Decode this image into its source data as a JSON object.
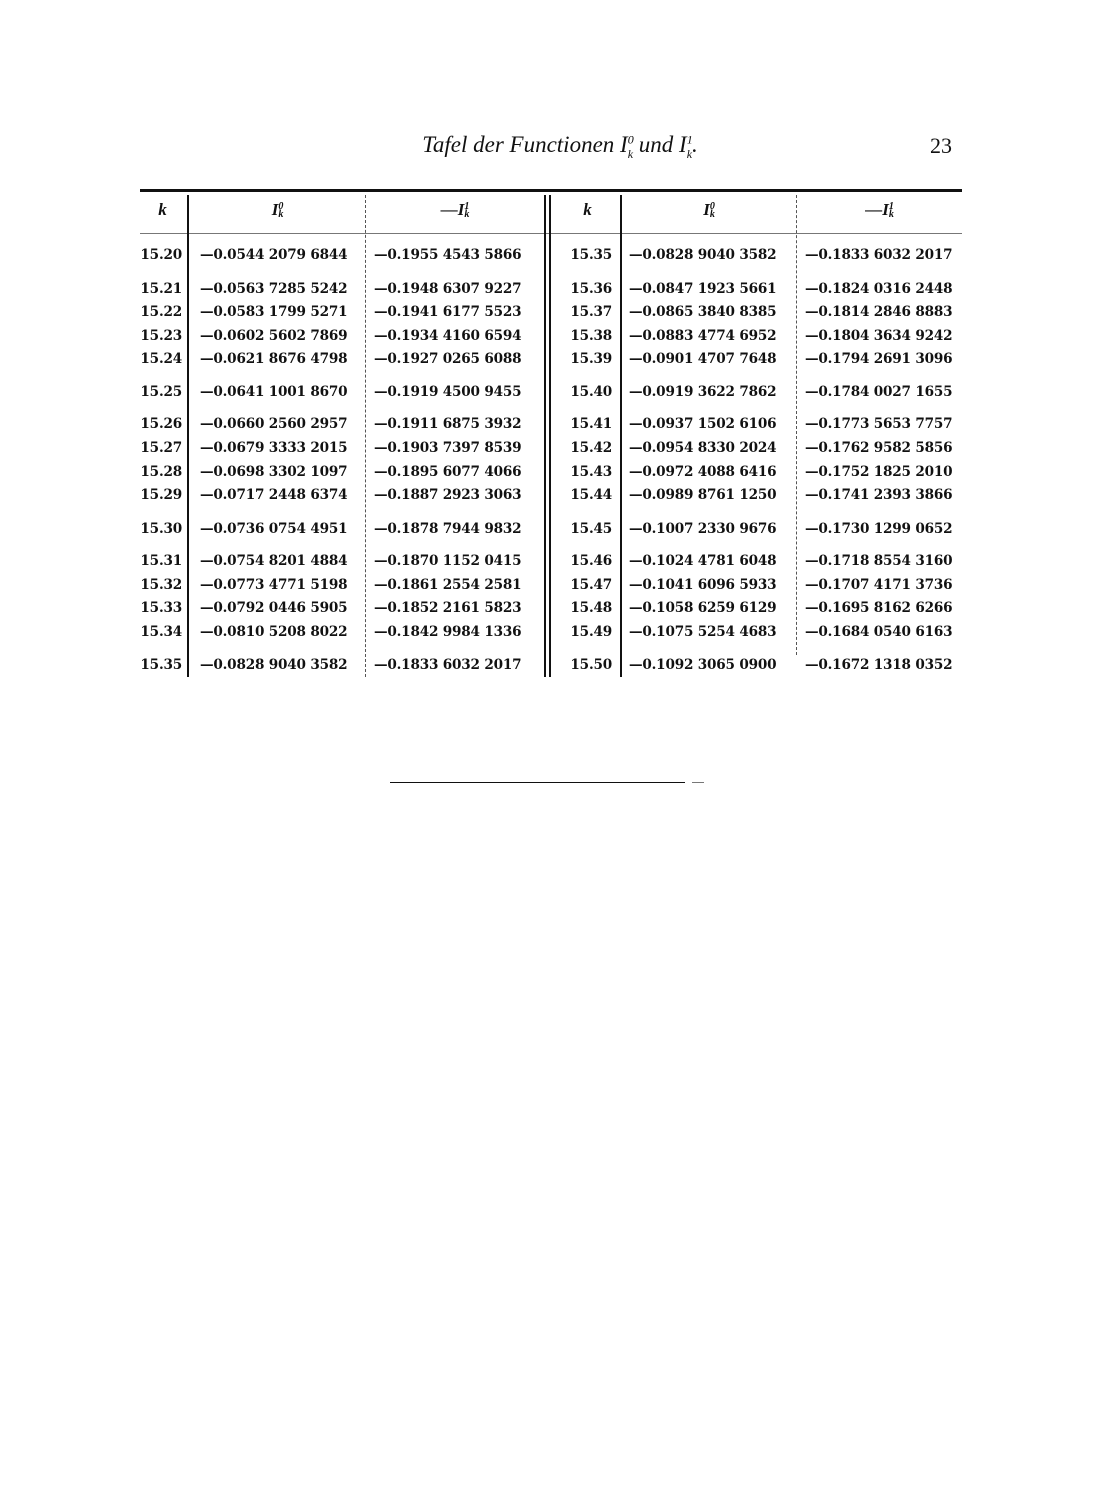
{
  "header": {
    "title": "Tafel der Functionen",
    "title_conj": "und",
    "page_number": "23"
  },
  "table": {
    "columns": {
      "k": "k",
      "i0": "I",
      "i0_sup": "0",
      "i0_sub": "k",
      "i1": "—I",
      "i1_sup": "1",
      "i1_sub": "k"
    },
    "left": [
      [
        "15.20",
        "—0.0544 2079 6844",
        "—0.1955 4543 5866"
      ],
      [
        "15.21",
        "—0.0563 7285 5242",
        "—0.1948 6307 9227"
      ],
      [
        "15.22",
        "—0.0583 1799 5271",
        "—0.1941 6177 5523"
      ],
      [
        "15.23",
        "—0.0602 5602 7869",
        "—0.1934 4160 6594"
      ],
      [
        "15.24",
        "—0.0621 8676 4798",
        "—0.1927 0265 6088"
      ],
      [
        "15.25",
        "—0.0641 1001 8670",
        "—0.1919 4500 9455"
      ],
      [
        "15.26",
        "—0.0660 2560 2957",
        "—0.1911 6875 3932"
      ],
      [
        "15.27",
        "—0.0679 3333 2015",
        "—0.1903 7397 8539"
      ],
      [
        "15.28",
        "—0.0698 3302 1097",
        "—0.1895 6077 4066"
      ],
      [
        "15.29",
        "—0.0717 2448 6374",
        "—0.1887 2923 3063"
      ],
      [
        "15.30",
        "—0.0736 0754 4951",
        "—0.1878 7944 9832"
      ],
      [
        "15.31",
        "—0.0754 8201 4884",
        "—0.1870 1152 0415"
      ],
      [
        "15.32",
        "—0.0773 4771 5198",
        "—0.1861 2554 2581"
      ],
      [
        "15.33",
        "—0.0792 0446 5905",
        "—0.1852 2161 5823"
      ],
      [
        "15.34",
        "—0.0810 5208 8022",
        "—0.1842 9984 1336"
      ],
      [
        "15.35",
        "—0.0828 9040 3582",
        "—0.1833 6032 2017"
      ]
    ],
    "right": [
      [
        "15.35",
        "—0.0828 9040 3582",
        "—0.1833 6032 2017"
      ],
      [
        "15.36",
        "—0.0847 1923 5661",
        "—0.1824 0316 2448"
      ],
      [
        "15.37",
        "—0.0865 3840 8385",
        "—0.1814 2846 8883"
      ],
      [
        "15.38",
        "—0.0883 4774 6952",
        "—0.1804 3634 9242"
      ],
      [
        "15.39",
        "—0.0901 4707 7648",
        "—0.1794 2691 3096"
      ],
      [
        "15.40",
        "—0.0919 3622 7862",
        "—0.1784 0027 1655"
      ],
      [
        "15.41",
        "—0.0937 1502 6106",
        "—0.1773 5653 7757"
      ],
      [
        "15.42",
        "—0.0954 8330 2024",
        "—0.1762 9582 5856"
      ],
      [
        "15.43",
        "—0.0972 4088 6416",
        "—0.1752 1825 2010"
      ],
      [
        "15.44",
        "—0.0989 8761 1250",
        "—0.1741 2393 3866"
      ],
      [
        "15.45",
        "—0.1007 2330 9676",
        "—0.1730 1299 0652"
      ],
      [
        "15.46",
        "—0.1024 4781 6048",
        "—0.1718 8554 3160"
      ],
      [
        "15.47",
        "—0.1041 6096 5933",
        "—0.1707 4171 3736"
      ],
      [
        "15.48",
        "—0.1058 6259 6129",
        "—0.1695 8162 6266"
      ],
      [
        "15.49",
        "—0.1075 5254 4683",
        "—0.1684 0540 6163"
      ],
      [
        "15.50",
        "—0.1092 3065 0900",
        "—0.1672 1318 0352"
      ]
    ]
  }
}
